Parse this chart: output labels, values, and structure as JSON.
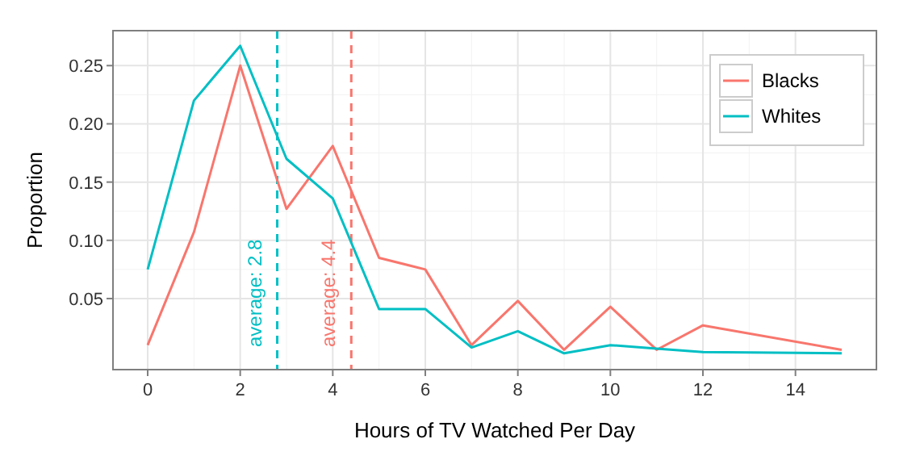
{
  "chart_data": {
    "type": "line",
    "xlabel": "Hours of TV Watched Per Day",
    "ylabel": "Proportion",
    "x": [
      0,
      1,
      2,
      3,
      4,
      5,
      6,
      7,
      8,
      9,
      10,
      11,
      12,
      15
    ],
    "series": [
      {
        "name": "Blacks",
        "color": "#f8766d",
        "values": [
          0.01,
          0.107,
          0.25,
          0.127,
          0.181,
          0.085,
          0.075,
          0.01,
          0.048,
          0.006,
          0.043,
          0.006,
          0.027,
          0.006
        ]
      },
      {
        "name": "Whites",
        "color": "#00bfc4",
        "values": [
          0.075,
          0.22,
          0.267,
          0.17,
          0.136,
          0.041,
          0.041,
          0.008,
          0.022,
          0.003,
          0.01,
          0.007,
          0.004,
          0.003
        ]
      }
    ],
    "xlim": [
      -0.75,
      15.75
    ],
    "ylim": [
      -0.011,
      0.28
    ],
    "xticks": [
      0,
      2,
      4,
      6,
      8,
      10,
      12,
      14
    ],
    "yticks": [
      {
        "value": 0.05,
        "label": "0.05"
      },
      {
        "value": 0.1,
        "label": "0.10"
      },
      {
        "value": 0.15,
        "label": "0.15"
      },
      {
        "value": 0.2,
        "label": "0.20"
      },
      {
        "value": 0.25,
        "label": "0.25"
      }
    ],
    "ref_lines": [
      {
        "axis": "x",
        "value": 2.8,
        "label": "average: 2.8",
        "color": "#00bfc4",
        "line_style": "dashed"
      },
      {
        "axis": "x",
        "value": 4.4,
        "label": "average: 4.4",
        "color": "#f8766d",
        "line_style": "dashed"
      }
    ],
    "grid": true,
    "legend": "top right",
    "marker": "none",
    "line_style": "solid"
  }
}
